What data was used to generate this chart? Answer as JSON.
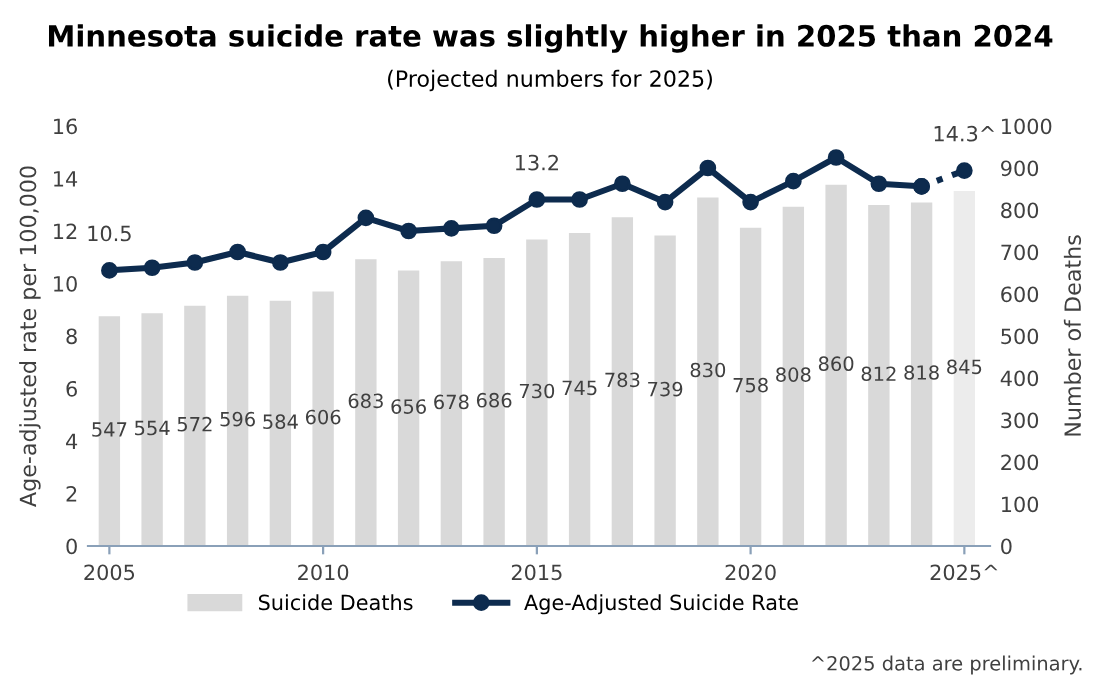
{
  "chart_data": {
    "type": "bar",
    "title": "Minnesota suicide rate was slightly higher in 2025 than 2024",
    "subtitle": "(Projected numbers for 2025)",
    "ylabel": "Age-adjusted rate per 100,000",
    "y2label": "Number of Deaths",
    "annotations": [
      "^2025 data are preliminary."
    ],
    "x": [
      2005,
      2006,
      2007,
      2008,
      2009,
      2010,
      2011,
      2012,
      2013,
      2014,
      2015,
      2016,
      2017,
      2018,
      2019,
      2020,
      2021,
      2022,
      2023,
      2024,
      2025
    ],
    "series": [
      {
        "name": "Suicide Deaths",
        "axis": "y2",
        "data_labels": true,
        "colors": [
          "#d9d9d9",
          "#d9d9d9",
          "#d9d9d9",
          "#d9d9d9",
          "#d9d9d9",
          "#d9d9d9",
          "#d9d9d9",
          "#d9d9d9",
          "#d9d9d9",
          "#d9d9d9",
          "#d9d9d9",
          "#d9d9d9",
          "#d9d9d9",
          "#d9d9d9",
          "#d9d9d9",
          "#d9d9d9",
          "#d9d9d9",
          "#d9d9d9",
          "#d9d9d9",
          "#d9d9d9",
          "#ececec"
        ],
        "values": [
          547,
          554,
          572,
          596,
          584,
          606,
          683,
          656,
          678,
          686,
          730,
          745,
          783,
          739,
          830,
          758,
          808,
          860,
          812,
          818,
          845
        ]
      },
      {
        "name": "Age-Adjusted Suicide Rate",
        "type": "line",
        "axis": "y",
        "color": "#0d2b4e",
        "marker": "circle",
        "line_style": "solid",
        "values": [
          10.5,
          10.6,
          10.8,
          11.2,
          10.8,
          11.2,
          12.5,
          12.0,
          12.1,
          12.2,
          13.2,
          13.2,
          13.8,
          13.1,
          14.4,
          13.1,
          13.9,
          14.8,
          13.8,
          13.7,
          null
        ],
        "value_labels": [
          "10.5",
          null,
          null,
          null,
          null,
          null,
          null,
          null,
          null,
          null,
          "13.2",
          null,
          null,
          null,
          null,
          null,
          null,
          null,
          null,
          null,
          null
        ]
      },
      {
        "type": "line",
        "axis": "y",
        "color": "#0d2b4e",
        "marker": "circle",
        "line_style": "dotted",
        "x": [
          2024,
          2025
        ],
        "values": [
          13.7,
          14.3
        ],
        "value_labels": [
          null,
          "14.3^"
        ]
      }
    ],
    "xlim": [
      2004.5,
      2025.6
    ],
    "xticks": [
      2005,
      2010,
      2015,
      2020,
      {
        "value": 2025,
        "label": "2025^"
      }
    ],
    "ylim": [
      0,
      16
    ],
    "yticks": [
      0,
      2,
      4,
      6,
      8,
      10,
      12,
      14,
      16
    ],
    "y2lim": [
      0,
      1000
    ],
    "y2ticks": [
      0,
      100,
      200,
      300,
      400,
      500,
      600,
      700,
      800,
      900,
      1000
    ],
    "grid": false,
    "legend": "bottom"
  }
}
